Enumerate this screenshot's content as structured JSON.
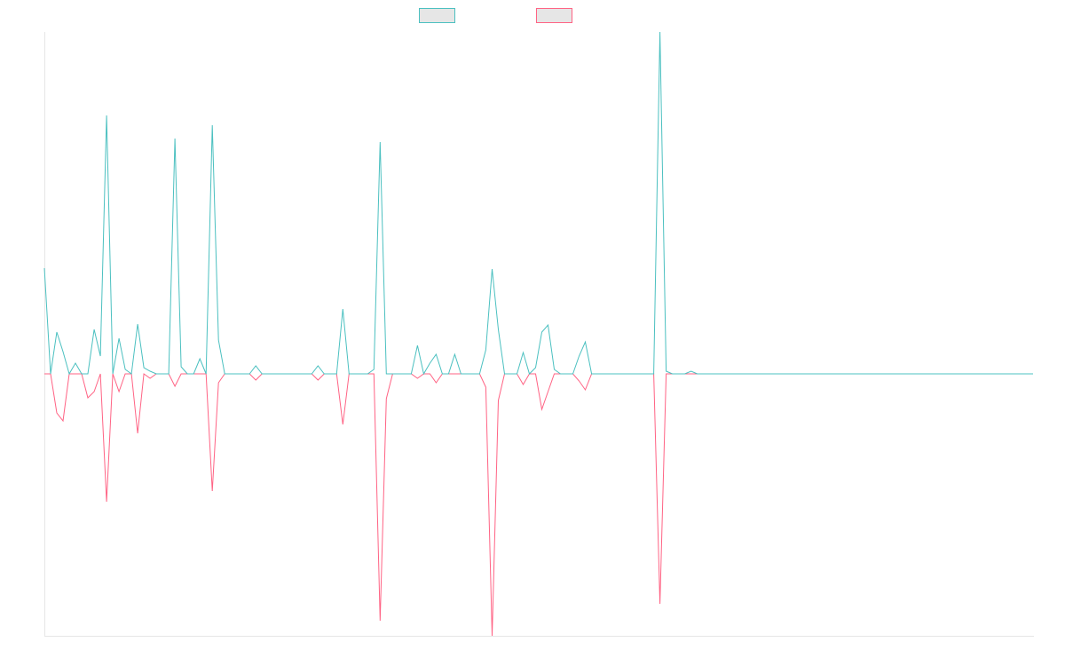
{
  "chart_data": {
    "type": "line",
    "series": [
      {
        "color": "#4bc0c0",
        "values": [
          119,
          0,
          47,
          25,
          0,
          12,
          0,
          0,
          50,
          20,
          291,
          0,
          40,
          5,
          0,
          56,
          7,
          3,
          0,
          0,
          0,
          265,
          8,
          0,
          0,
          17,
          0,
          280,
          38,
          0,
          0,
          0,
          0,
          0,
          9,
          0,
          0,
          0,
          0,
          0,
          0,
          0,
          0,
          0,
          9,
          0,
          0,
          0,
          73,
          0,
          0,
          0,
          0,
          5,
          261,
          0,
          0,
          0,
          0,
          0,
          32,
          0,
          12,
          22,
          0,
          0,
          22,
          0,
          0,
          0,
          0,
          27,
          118,
          50,
          0,
          0,
          0,
          24,
          0,
          7,
          47,
          55,
          5,
          0,
          0,
          0,
          20,
          36,
          0,
          0,
          0,
          0,
          0,
          0,
          0,
          0,
          0,
          0,
          0,
          385,
          3,
          0,
          0,
          0,
          3,
          0,
          0,
          0,
          0,
          0,
          0,
          0,
          0,
          0,
          0,
          0,
          0,
          0,
          0,
          0,
          0,
          0,
          0,
          0,
          0,
          0,
          0,
          0,
          0,
          0,
          0,
          0,
          0,
          0,
          0,
          0,
          0,
          0,
          0,
          0,
          0,
          0,
          0,
          0,
          0,
          0,
          0,
          0,
          0,
          0,
          0,
          0,
          0,
          0,
          0,
          0,
          0,
          0,
          0,
          0
        ]
      },
      {
        "color": "#ff6384",
        "values": [
          0,
          0,
          -44,
          -53,
          0,
          0,
          0,
          -27,
          -20,
          0,
          -144,
          0,
          -20,
          0,
          0,
          -67,
          0,
          -5,
          0,
          0,
          0,
          -14,
          0,
          0,
          0,
          0,
          0,
          -132,
          -10,
          0,
          0,
          0,
          0,
          0,
          -7,
          0,
          0,
          0,
          0,
          0,
          0,
          0,
          0,
          0,
          -7,
          0,
          0,
          0,
          -57,
          0,
          0,
          0,
          0,
          0,
          -278,
          -28,
          0,
          0,
          0,
          0,
          -5,
          0,
          0,
          -10,
          0,
          0,
          0,
          0,
          0,
          0,
          0,
          -15,
          -295,
          -30,
          0,
          0,
          0,
          -12,
          0,
          0,
          -40,
          -20,
          0,
          0,
          0,
          0,
          -8,
          -18,
          0,
          0,
          0,
          0,
          0,
          0,
          0,
          0,
          0,
          0,
          0,
          -259,
          0,
          0,
          0,
          0,
          0,
          0,
          0,
          0,
          0,
          0,
          0,
          0,
          0,
          0,
          0,
          0,
          0,
          0,
          0,
          0,
          0,
          0,
          0,
          0,
          0,
          0,
          0,
          0,
          0,
          0,
          0,
          0,
          0,
          0,
          0,
          0,
          0,
          0,
          0,
          0,
          0,
          0,
          0,
          0,
          0,
          0,
          0,
          0,
          0,
          0,
          0,
          0,
          0,
          0,
          0,
          0,
          0,
          0,
          0,
          0
        ]
      }
    ],
    "ylim": [
      -295,
      385
    ]
  }
}
